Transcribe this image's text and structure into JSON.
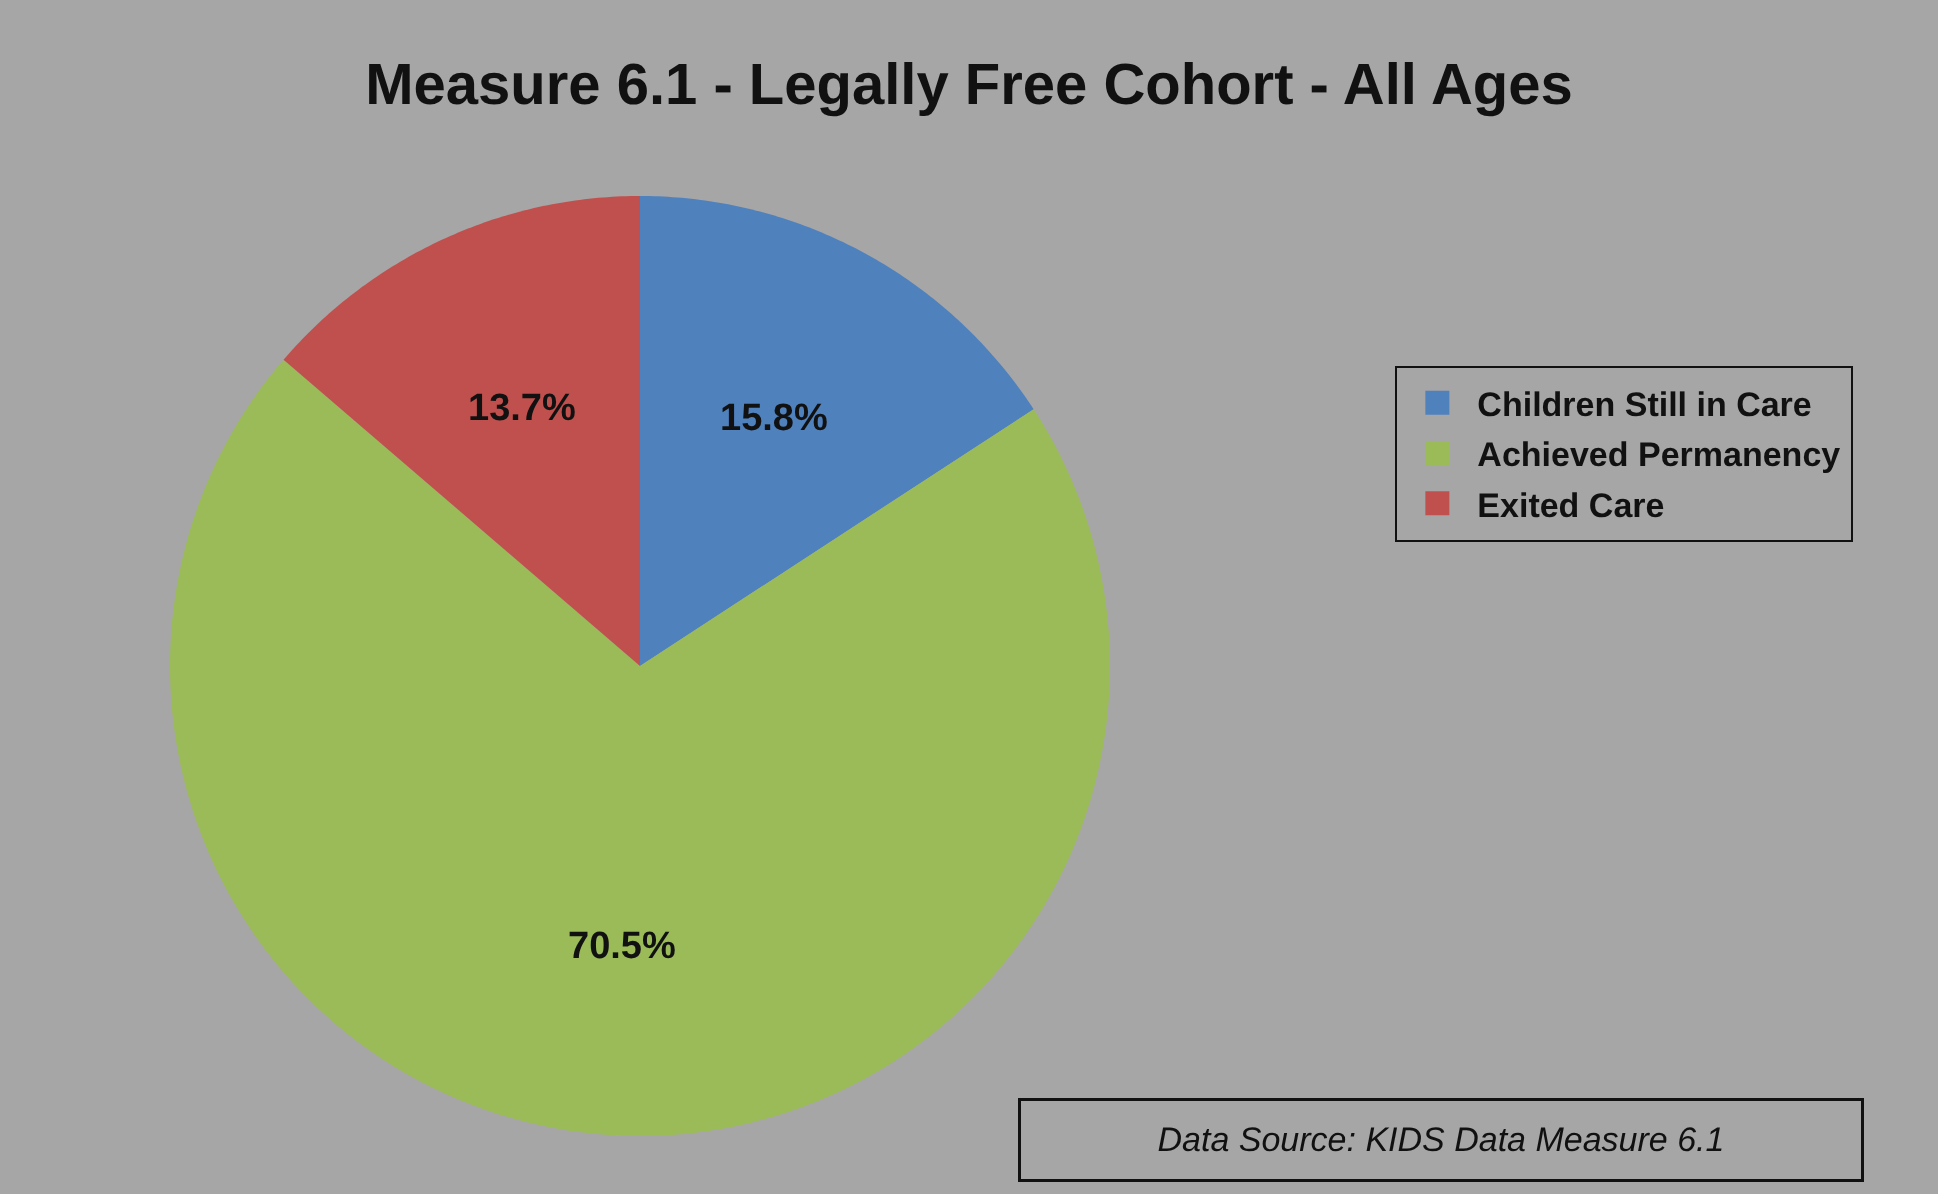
{
  "chart_data": {
    "type": "pie",
    "title": "Measure 6.1 - Legally Free Cohort - All Ages",
    "categories": [
      "Children Still in Care",
      "Achieved Permanency",
      "Exited Care"
    ],
    "values": [
      15.8,
      70.5,
      13.7
    ],
    "value_labels": [
      "15.8%",
      "70.5%",
      "13.7%"
    ],
    "colors": [
      "#4f81bd",
      "#9bbb59",
      "#c0504d"
    ],
    "legend": "right",
    "annotations": [
      "Data Source: KIDS Data Measure 6.1"
    ]
  }
}
